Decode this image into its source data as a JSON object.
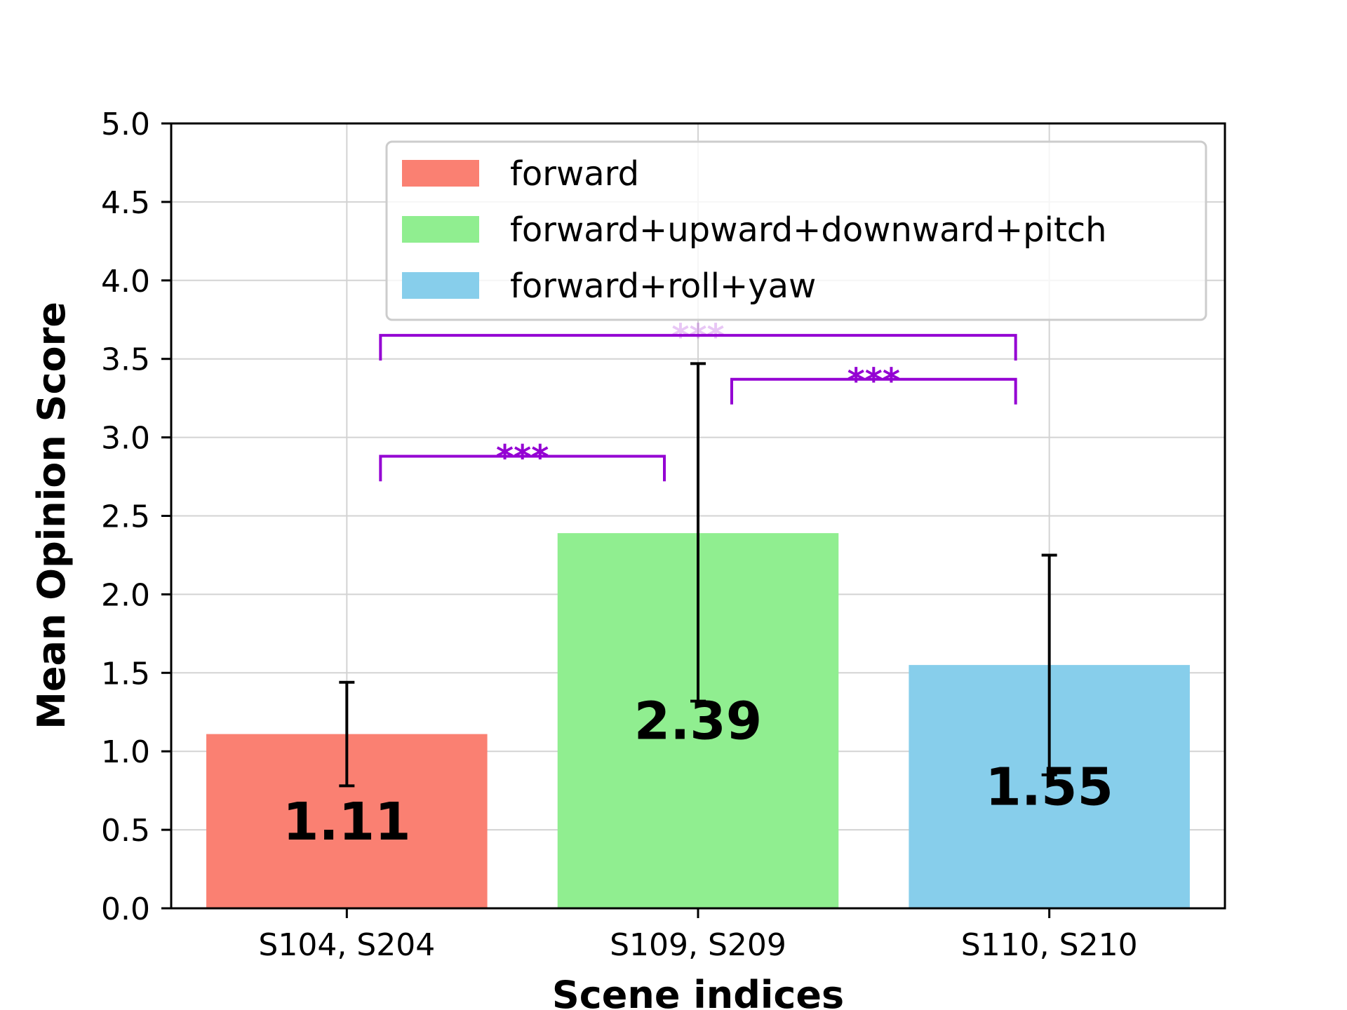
{
  "chart_data": {
    "type": "bar",
    "title": "",
    "xlabel": "Scene indices",
    "ylabel": "Mean Opinion Score",
    "ylim": [
      0,
      5
    ],
    "yticks": [
      "0.0",
      "0.5",
      "1.0",
      "1.5",
      "2.0",
      "2.5",
      "3.0",
      "3.5",
      "4.0",
      "4.5",
      "5.0"
    ],
    "grid": true,
    "legend_position": "top-right",
    "categories": [
      "S104, S204",
      "S109, S209",
      "S110, S210"
    ],
    "series": [
      {
        "name": "forward",
        "color": "#FA8072",
        "value": 1.11,
        "value_label": "1.11",
        "error_low": 0.78,
        "error_high": 1.44
      },
      {
        "name": "forward+upward+downward+pitch",
        "color": "#90EE90",
        "value": 2.39,
        "value_label": "2.39",
        "error_low": 1.32,
        "error_high": 3.47
      },
      {
        "name": "forward+roll+yaw",
        "color": "#87CEEB",
        "value": 1.55,
        "value_label": "1.55",
        "error_low": 0.85,
        "error_high": 2.25
      }
    ],
    "significance": [
      {
        "from": 0,
        "to": 1,
        "label": "***",
        "y_top": 2.88,
        "y_bottom": 2.72,
        "color": "#9400D3"
      },
      {
        "from": 1,
        "to": 2,
        "label": "***",
        "y_top": 3.37,
        "y_bottom": 3.21,
        "color": "#9400D3"
      },
      {
        "from": 0,
        "to": 2,
        "label": "***",
        "y_top": 3.65,
        "y_bottom": 3.49,
        "color": "#9400D3"
      }
    ]
  }
}
